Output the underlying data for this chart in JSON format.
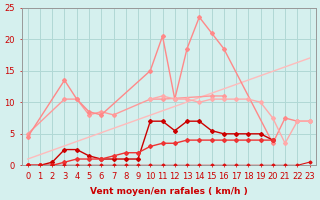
{
  "background_color": "#d5f0ee",
  "grid_color": "#b0d8d5",
  "xlabel": "Vent moyen/en rafales ( km/h )",
  "xlabel_color": "#cc0000",
  "ylim": [
    0,
    25
  ],
  "yticks": [
    0,
    5,
    10,
    15,
    20,
    25
  ],
  "xlim": [
    -0.5,
    23.5
  ],
  "tick_fontsize": 6.0,
  "lines": [
    {
      "color": "#ffbbbb",
      "lw": 1.0,
      "marker": null,
      "ms": 0,
      "x": [
        0,
        23
      ],
      "y": [
        1.0,
        17.0
      ]
    },
    {
      "color": "#ff9999",
      "lw": 1.0,
      "marker": "D",
      "ms": 2.0,
      "x": [
        0,
        3,
        4,
        5,
        6,
        7,
        10,
        11,
        15,
        16
      ],
      "y": [
        5.0,
        10.5,
        10.5,
        8.0,
        8.5,
        8.0,
        10.5,
        10.5,
        11.0,
        11.0
      ]
    },
    {
      "color": "#ff8888",
      "lw": 1.0,
      "marker": "D",
      "ms": 2.0,
      "x": [
        0,
        3,
        4,
        5,
        6,
        10,
        11,
        12,
        13,
        14,
        15,
        16,
        20,
        21,
        22,
        23
      ],
      "y": [
        4.5,
        13.5,
        10.5,
        8.5,
        8.0,
        15.0,
        20.5,
        10.5,
        18.5,
        23.5,
        21.0,
        18.5,
        3.5,
        7.5,
        7.0,
        7.0
      ]
    },
    {
      "color": "#ffaaaa",
      "lw": 1.0,
      "marker": "D",
      "ms": 2.0,
      "x": [
        10,
        11,
        12,
        13,
        14,
        15,
        16,
        17,
        18,
        19,
        20,
        21,
        22,
        23
      ],
      "y": [
        10.5,
        11.0,
        10.5,
        10.5,
        10.0,
        10.5,
        10.5,
        10.5,
        10.5,
        10.0,
        7.5,
        3.5,
        7.0,
        7.0
      ]
    },
    {
      "color": "#cc0000",
      "lw": 1.0,
      "marker": "D",
      "ms": 2.0,
      "x": [
        0,
        1,
        2,
        3,
        4,
        5,
        6,
        7,
        8,
        9,
        10,
        11,
        12,
        13,
        14,
        15,
        16,
        17,
        18,
        19,
        20
      ],
      "y": [
        0.0,
        0.0,
        0.5,
        2.5,
        2.5,
        1.5,
        1.0,
        1.0,
        1.0,
        1.0,
        7.0,
        7.0,
        5.5,
        7.0,
        7.0,
        5.5,
        5.0,
        5.0,
        5.0,
        5.0,
        4.0
      ]
    },
    {
      "color": "#ee3333",
      "lw": 1.0,
      "marker": "D",
      "ms": 2.0,
      "x": [
        0,
        1,
        2,
        3,
        4,
        5,
        6,
        7,
        8,
        9,
        10,
        11,
        12,
        13,
        14,
        15,
        16,
        17,
        18,
        19,
        20
      ],
      "y": [
        0.0,
        0.0,
        0.0,
        0.5,
        1.0,
        1.0,
        1.0,
        1.5,
        2.0,
        2.0,
        3.0,
        3.5,
        3.5,
        4.0,
        4.0,
        4.0,
        4.0,
        4.0,
        4.0,
        4.0,
        4.0
      ]
    },
    {
      "color": "#dd1111",
      "lw": 0.8,
      "marker": "D",
      "ms": 1.5,
      "x": [
        0,
        1,
        2,
        3,
        4,
        5,
        6,
        7,
        8,
        9,
        10,
        11,
        12,
        13,
        14,
        15,
        16,
        17,
        18,
        19,
        20,
        21,
        22,
        23
      ],
      "y": [
        0.0,
        0.0,
        0.0,
        0.0,
        0.0,
        0.0,
        0.0,
        0.0,
        0.0,
        0.0,
        0.0,
        0.0,
        0.0,
        0.0,
        0.0,
        0.0,
        0.0,
        0.0,
        0.0,
        0.0,
        0.0,
        0.0,
        0.0,
        0.5
      ]
    }
  ]
}
